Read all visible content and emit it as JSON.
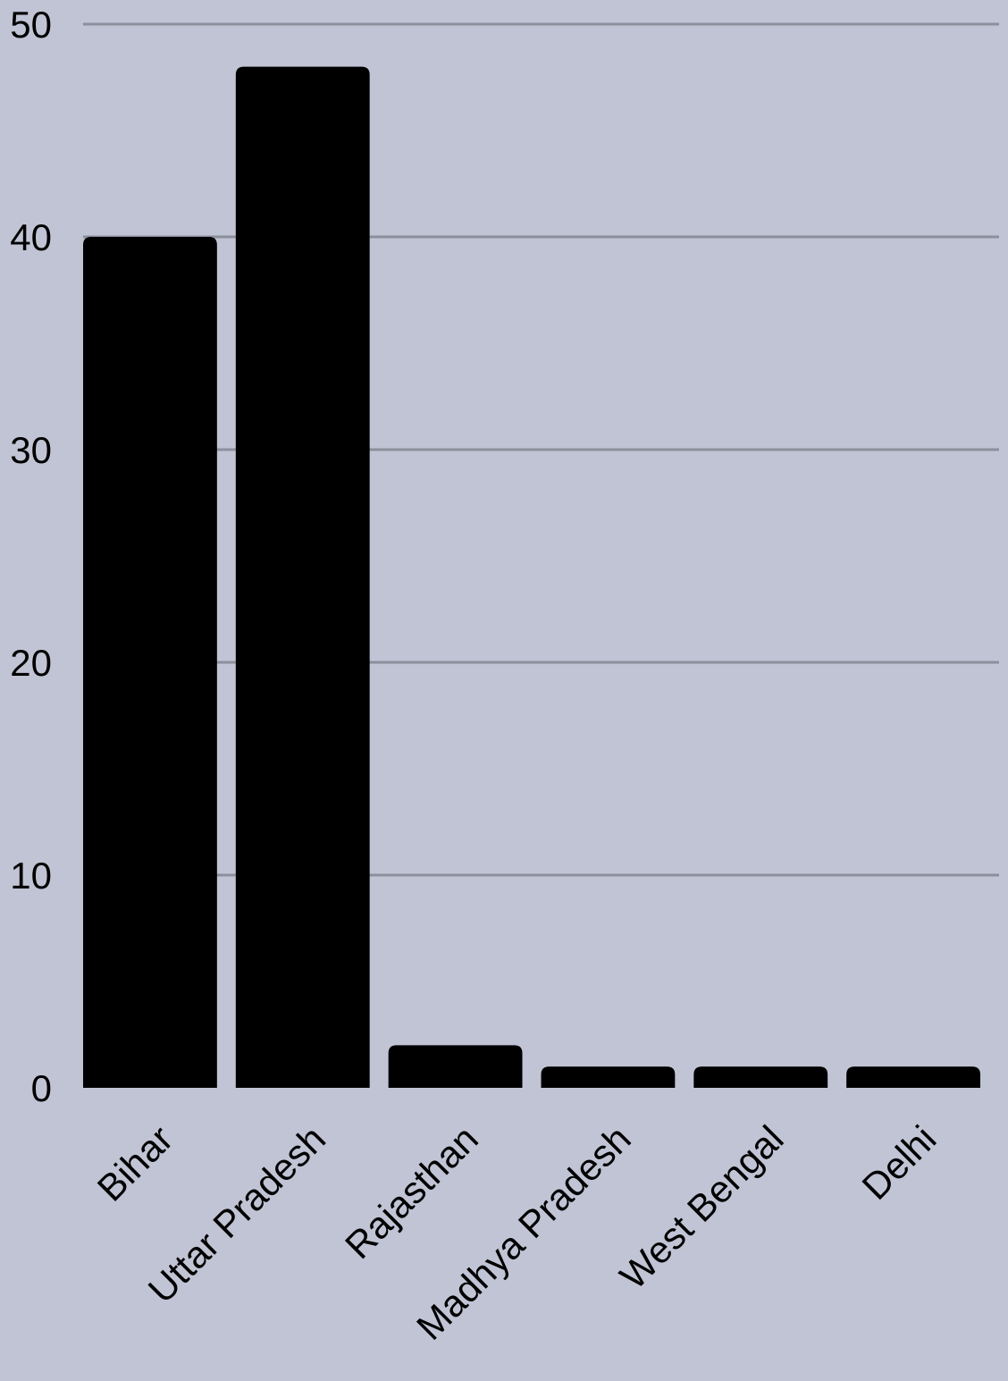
{
  "chart_data": {
    "type": "bar",
    "title": "",
    "xlabel": "",
    "ylabel": "",
    "categories": [
      "Bihar",
      "Uttar Pradesh",
      "Rajasthan",
      "Madhya Pradesh",
      "West Bengal",
      "Delhi"
    ],
    "values": [
      40,
      48,
      2,
      1,
      1,
      1
    ],
    "ylim": [
      0,
      50
    ],
    "yticks": [
      0,
      10,
      20,
      30,
      40,
      50
    ],
    "grid": true,
    "legend": "none",
    "colors": {
      "background": "#c1c4d4",
      "bar": "#000000",
      "grid": "#8c8f9c",
      "text": "#000000"
    }
  }
}
